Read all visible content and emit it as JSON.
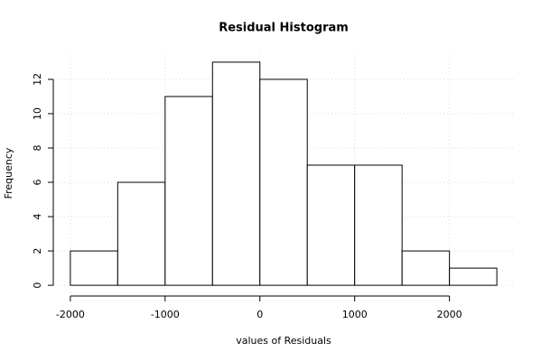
{
  "chart_data": {
    "type": "histogram",
    "title": "Residual Histogram",
    "x_label": "values of Residuals",
    "y_label": "Frequency",
    "bins": [
      -2000,
      -1500,
      -1000,
      -500,
      0,
      500,
      1000,
      1500,
      2000,
      2500
    ],
    "counts": [
      2,
      6,
      11,
      13,
      12,
      7,
      7,
      2,
      1
    ],
    "color": "#ffffff",
    "edge_color": "#000000",
    "xlim": [
      -2180,
      2680
    ],
    "ylim": [
      -0.52,
      13.52
    ],
    "xticks": [
      -2000,
      -1000,
      0,
      1000,
      2000
    ],
    "yticks": [
      0,
      2,
      4,
      6,
      8,
      10,
      12
    ],
    "grid": true
  }
}
